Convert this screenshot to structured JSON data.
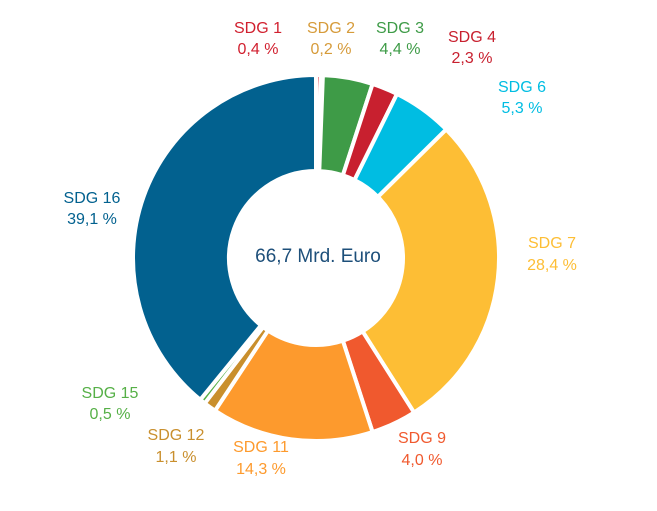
{
  "chart_data": {
    "type": "pie",
    "variant": "donut",
    "center_label": "66,7 Mrd. Euro",
    "slices": [
      {
        "name": "SDG 1",
        "value_label": "0,4 %",
        "value": 0.4,
        "color": "#d1202f"
      },
      {
        "name": "SDG 2",
        "value_label": "0,2 %",
        "value": 0.2,
        "color": "#d69b3a"
      },
      {
        "name": "SDG 3",
        "value_label": "4,4 %",
        "value": 4.4,
        "color": "#3e9b47"
      },
      {
        "name": "SDG 4",
        "value_label": "2,3 %",
        "value": 2.3,
        "color": "#c8202f"
      },
      {
        "name": "SDG 6",
        "value_label": "5,3 %",
        "value": 5.3,
        "color": "#00bde2"
      },
      {
        "name": "SDG 7",
        "value_label": "28,4 %",
        "value": 28.4,
        "color": "#fdbe35"
      },
      {
        "name": "SDG 9",
        "value_label": "4,0 %",
        "value": 4.0,
        "color": "#f0592e"
      },
      {
        "name": "SDG 11",
        "value_label": "14,3 %",
        "value": 14.3,
        "color": "#fd9a2d"
      },
      {
        "name": "SDG 12",
        "value_label": "1,1 %",
        "value": 1.1,
        "color": "#c98f2d"
      },
      {
        "name": "SDG 15",
        "value_label": "0,5 %",
        "value": 0.5,
        "color": "#56b047"
      },
      {
        "name": "SDG 16",
        "value_label": "39,1 %",
        "value": 39.1,
        "color": "#02618f"
      }
    ]
  }
}
